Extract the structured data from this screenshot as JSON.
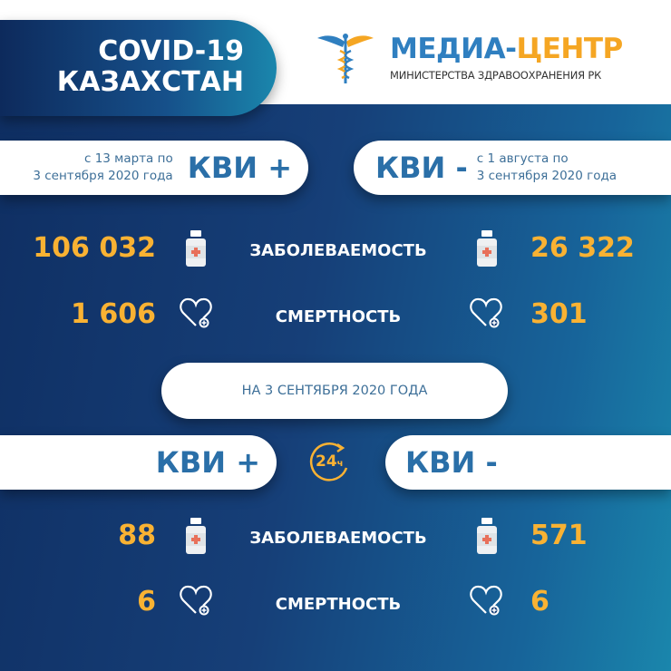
{
  "header": {
    "title_line1": "COVID-19",
    "title_line2": "КАЗАХСТАН",
    "logo_part1": "МЕДИА-",
    "logo_part2": "ЦЕНТР",
    "logo_subtitle": "МИНИСТЕРСТВА ЗДРАВООХРАНЕНИЯ РК"
  },
  "colors": {
    "accent_orange": "#f9b233",
    "brand_blue": "#2a6fa8"
  },
  "cumulative": {
    "left": {
      "period_line1": "с 13 марта по",
      "period_line2": "3 сентября 2020 года",
      "label": "КВИ +"
    },
    "right": {
      "period_line1": "с 1 августа  по",
      "period_line2": "3 сентября 2020 года",
      "label": "КВИ -"
    },
    "incidence_label": "ЗАБОЛЕВАЕМОСТЬ",
    "mortality_label": "СМЕРТНОСТЬ",
    "kvi_plus_cases": "106 032",
    "kvi_minus_cases": "26 322",
    "kvi_plus_deaths": "1 606",
    "kvi_minus_deaths": "301"
  },
  "daily": {
    "date_label": "НА 3 СЕНТЯБРЯ  2020 ГОДА",
    "left_label": "КВИ +",
    "right_label": "КВИ -",
    "badge": "24",
    "badge_unit": "ч",
    "incidence_label": "ЗАБОЛЕВАЕМОСТЬ",
    "mortality_label": "СМЕРТНОСТЬ",
    "kvi_plus_cases": "88",
    "kvi_minus_cases": "571",
    "kvi_plus_deaths": "6",
    "kvi_minus_deaths": "6"
  },
  "icons": {
    "bottle": "medicine-bottle-icon",
    "heart": "heart-plus-icon",
    "clock": "24h-clock-icon",
    "logo": "caduceus-icon"
  }
}
